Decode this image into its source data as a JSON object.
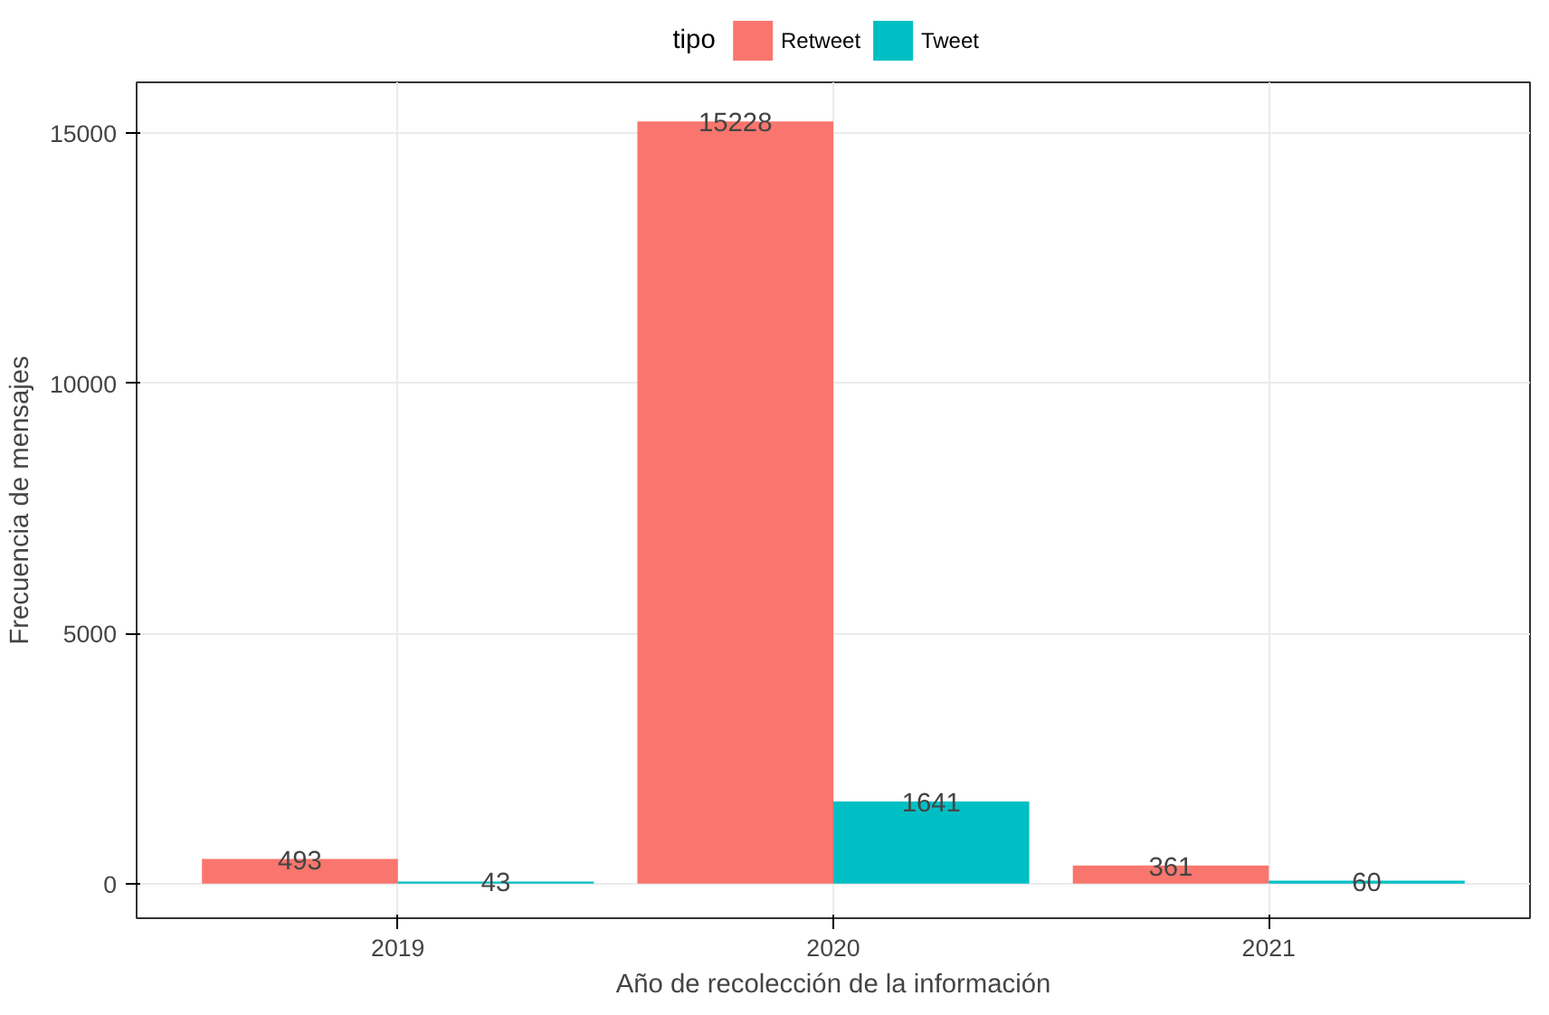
{
  "chart_data": {
    "type": "bar",
    "xlabel": "Año de recolección de la información",
    "ylabel": "Frecuencia de mensajes",
    "legend_title": "tipo",
    "categories": [
      "2019",
      "2020",
      "2021"
    ],
    "series": [
      {
        "name": "Retweet",
        "color": "#f8766d",
        "values": [
          493,
          15228,
          361
        ]
      },
      {
        "name": "Tweet",
        "color": "#00bfc4",
        "values": [
          43,
          1641,
          60
        ]
      }
    ],
    "ylim": [
      -690,
      16010
    ],
    "yticks": [
      0,
      5000,
      10000,
      15000
    ],
    "grid": true,
    "legend": "top",
    "data_labels": true
  }
}
